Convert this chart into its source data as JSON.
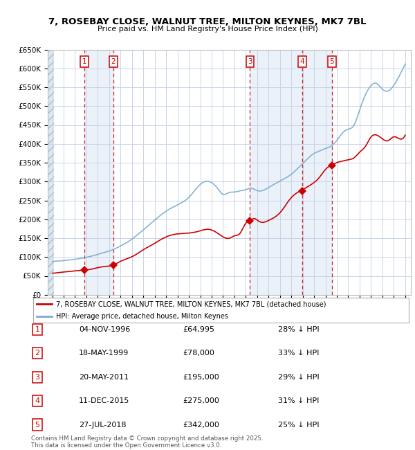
{
  "title": "7, ROSEBAY CLOSE, WALNUT TREE, MILTON KEYNES, MK7 7BL",
  "subtitle": "Price paid vs. HM Land Registry's House Price Index (HPI)",
  "ylim": [
    0,
    650000
  ],
  "yticks": [
    0,
    50000,
    100000,
    150000,
    200000,
    250000,
    300000,
    350000,
    400000,
    450000,
    500000,
    550000,
    600000,
    650000
  ],
  "ytick_labels": [
    "£0",
    "£50K",
    "£100K",
    "£150K",
    "£200K",
    "£250K",
    "£300K",
    "£350K",
    "£400K",
    "£450K",
    "£500K",
    "£550K",
    "£600K",
    "£650K"
  ],
  "sales": [
    {
      "num": 1,
      "date": "04-NOV-1996",
      "year": 1996.84,
      "price": 64995,
      "label": "1"
    },
    {
      "num": 2,
      "date": "18-MAY-1999",
      "year": 1999.37,
      "price": 78000,
      "label": "2"
    },
    {
      "num": 3,
      "date": "20-MAY-2011",
      "year": 2011.37,
      "price": 195000,
      "label": "3"
    },
    {
      "num": 4,
      "date": "11-DEC-2015",
      "year": 2015.94,
      "price": 275000,
      "label": "4"
    },
    {
      "num": 5,
      "date": "27-JUL-2018",
      "year": 2018.57,
      "price": 342000,
      "label": "5"
    }
  ],
  "legend_line1": "7, ROSEBAY CLOSE, WALNUT TREE, MILTON KEYNES, MK7 7BL (detached house)",
  "legend_line2": "HPI: Average price, detached house, Milton Keynes",
  "copyright": "Contains HM Land Registry data © Crown copyright and database right 2025.\nThis data is licensed under the Open Government Licence v3.0.",
  "grid_color": "#c8d4e8",
  "hpi_line_color": "#7aaad0",
  "price_line_color": "#cc0000",
  "dashed_line_color": "#cc0000",
  "shade_color": "#dce8f5",
  "table_rows": [
    [
      "1",
      "04-NOV-1996",
      "£64,995",
      "28% ↓ HPI"
    ],
    [
      "2",
      "18-MAY-1999",
      "£78,000",
      "33% ↓ HPI"
    ],
    [
      "3",
      "20-MAY-2011",
      "£195,000",
      "29% ↓ HPI"
    ],
    [
      "4",
      "11-DEC-2015",
      "£275,000",
      "31% ↓ HPI"
    ],
    [
      "5",
      "27-JUL-2018",
      "£342,000",
      "25% ↓ HPI"
    ]
  ]
}
